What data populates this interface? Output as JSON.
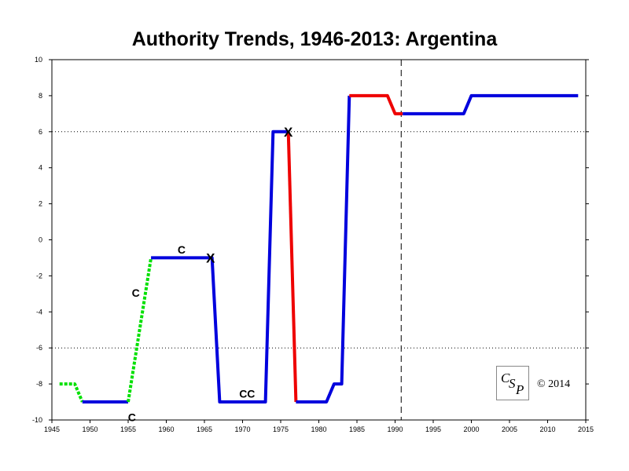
{
  "chart_data": {
    "type": "line",
    "title": "Authority Trends, 1946-2013: Argentina",
    "xlim": [
      1945,
      2015
    ],
    "ylim": [
      -10,
      10
    ],
    "x_ticks": [
      1945,
      1950,
      1955,
      1960,
      1965,
      1970,
      1975,
      1980,
      1985,
      1990,
      1995,
      2000,
      2005,
      2010,
      2015
    ],
    "y_ticks": [
      10,
      8,
      6,
      4,
      2,
      0,
      -2,
      -4,
      -6,
      -8,
      -10
    ],
    "grid": "dotted horizontal lines at 6 and -6",
    "vertical_reference_line": {
      "x": 1990.8,
      "style": "dashed"
    },
    "series": [
      {
        "style": "dotted",
        "color": "#00e000",
        "points": [
          [
            1946,
            -8
          ],
          [
            1948,
            -8
          ],
          [
            1949,
            -9
          ]
        ]
      },
      {
        "style": "solid",
        "color": "#0000dd",
        "points": [
          [
            1949,
            -9
          ],
          [
            1955,
            -9
          ]
        ]
      },
      {
        "style": "dotted",
        "color": "#00e000",
        "points": [
          [
            1955,
            -9
          ],
          [
            1958,
            -1
          ]
        ]
      },
      {
        "style": "solid",
        "color": "#0000dd",
        "points": [
          [
            1958,
            -1
          ],
          [
            1966,
            -1
          ],
          [
            1967,
            -9
          ],
          [
            1973,
            -9
          ],
          [
            1974,
            6
          ],
          [
            1976,
            6
          ]
        ]
      },
      {
        "style": "solid",
        "color": "#ee0000",
        "points": [
          [
            1976,
            6
          ],
          [
            1977,
            -9
          ]
        ]
      },
      {
        "style": "solid",
        "color": "#0000dd",
        "points": [
          [
            1977,
            -9
          ],
          [
            1981,
            -9
          ],
          [
            1982,
            -8
          ],
          [
            1983,
            -8
          ],
          [
            1984,
            8
          ]
        ]
      },
      {
        "style": "solid",
        "color": "#ee0000",
        "points": [
          [
            1984,
            8
          ],
          [
            1989,
            8
          ],
          [
            1990,
            7
          ],
          [
            1991,
            7
          ]
        ]
      },
      {
        "style": "solid",
        "color": "#0000dd",
        "points": [
          [
            1991,
            7
          ],
          [
            1999,
            7
          ],
          [
            2000,
            8
          ],
          [
            2014,
            8
          ]
        ]
      }
    ],
    "annotations": [
      {
        "text": "C",
        "x": 1955.5,
        "y": -9.8
      },
      {
        "text": "C",
        "x": 1956,
        "y": -2.9
      },
      {
        "text": "C",
        "x": 1962,
        "y": -0.5
      },
      {
        "text": "X",
        "x": 1965.8,
        "y": -1
      },
      {
        "text": "CC",
        "x": 1970.6,
        "y": -8.5
      },
      {
        "text": "X",
        "x": 1976,
        "y": 6
      }
    ]
  },
  "logo": {
    "letters": [
      "C",
      "S",
      "P"
    ]
  },
  "copyright": "© 2014"
}
